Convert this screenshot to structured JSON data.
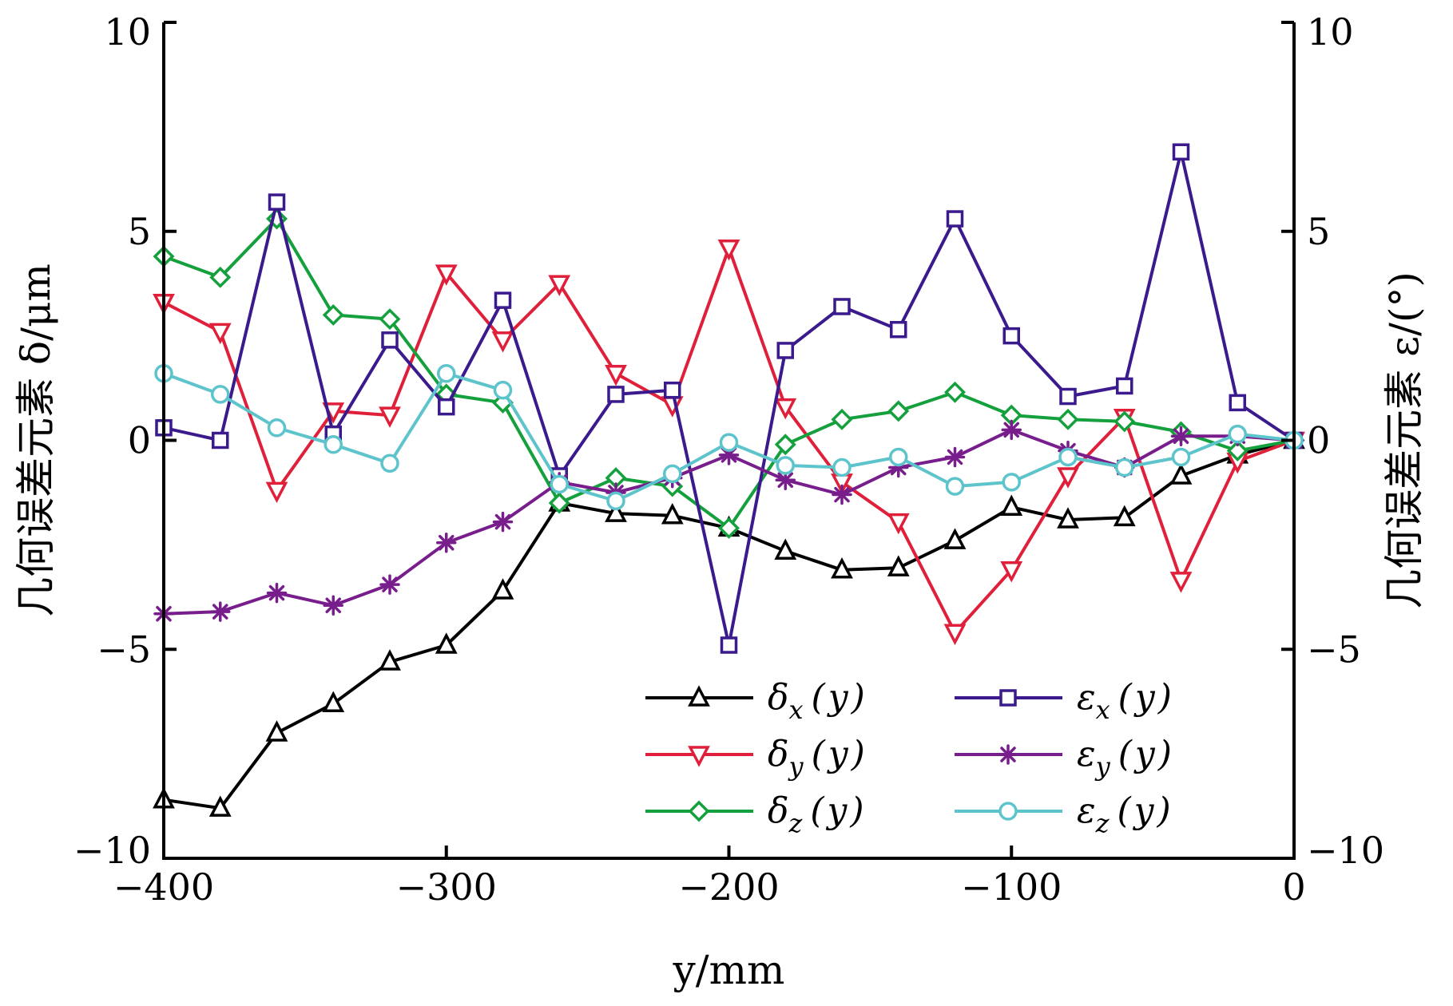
{
  "chart_data": {
    "type": "line",
    "x": [
      -400,
      -380,
      -360,
      -340,
      -320,
      -300,
      -280,
      -260,
      -240,
      -220,
      -200,
      -180,
      -160,
      -140,
      -120,
      -100,
      -80,
      -60,
      -40,
      -20,
      0
    ],
    "xlim": [
      -400,
      0
    ],
    "ylim_left": [
      -10,
      10
    ],
    "ylim_right": [
      -10,
      10
    ],
    "xlabel": "y/mm",
    "ylabel_left": "几何误差元素 δ/μm",
    "ylabel_right": "几何误差元素 ε/(°)",
    "x_ticks": [
      -400,
      -300,
      -200,
      -100,
      0
    ],
    "x_tick_labels": [
      "−400",
      "−300",
      "−200",
      "−100",
      "0"
    ],
    "y_ticks": [
      10,
      5,
      0,
      -5,
      -10
    ],
    "y_tick_labels": [
      "10",
      "5",
      "0",
      "−5",
      "−10"
    ],
    "grid": false,
    "legend_position": "bottom-right",
    "series": [
      {
        "name": "δx(y)",
        "base": "δ",
        "sub": "x",
        "arg": "y",
        "color": "#000000",
        "marker": "triangle-up",
        "values": [
          -8.6,
          -8.8,
          -7.0,
          -6.3,
          -5.3,
          -4.9,
          -3.6,
          -1.5,
          -1.75,
          -1.8,
          -2.1,
          -2.65,
          -3.1,
          -3.05,
          -2.4,
          -1.6,
          -1.9,
          -1.85,
          -0.85,
          -0.35,
          0.0
        ]
      },
      {
        "name": "δy(y)",
        "base": "δ",
        "sub": "y",
        "arg": "y",
        "color": "#e0203a",
        "marker": "triangle-down",
        "values": [
          3.3,
          2.6,
          -1.2,
          0.7,
          0.6,
          4.0,
          2.4,
          3.75,
          1.6,
          0.85,
          4.6,
          0.8,
          -1.0,
          -1.95,
          -4.6,
          -3.1,
          -0.85,
          0.55,
          -3.35,
          -0.5,
          0.0
        ]
      },
      {
        "name": "δz(y)",
        "base": "δ",
        "sub": "z",
        "arg": "y",
        "color": "#14a03c",
        "marker": "diamond",
        "values": [
          4.4,
          3.9,
          5.3,
          3.0,
          2.9,
          1.1,
          0.9,
          -1.5,
          -0.9,
          -1.1,
          -2.1,
          -0.1,
          0.5,
          0.7,
          1.15,
          0.6,
          0.5,
          0.45,
          0.2,
          -0.25,
          0.0
        ]
      },
      {
        "name": "εx(y)",
        "base": "ε",
        "sub": "x",
        "arg": "y",
        "color": "#3a1a8c",
        "marker": "square",
        "values": [
          0.3,
          0.0,
          5.7,
          0.15,
          2.4,
          0.8,
          3.35,
          -0.85,
          1.1,
          1.2,
          -4.9,
          2.15,
          3.2,
          2.65,
          5.3,
          2.5,
          1.05,
          1.3,
          6.9,
          0.9,
          0.0
        ]
      },
      {
        "name": "εy(y)",
        "base": "ε",
        "sub": "y",
        "arg": "y",
        "color": "#781e8c",
        "marker": "asterisk",
        "values": [
          -4.15,
          -4.1,
          -3.65,
          -3.95,
          -3.45,
          -2.45,
          -1.95,
          -1.0,
          -1.25,
          -0.9,
          -0.35,
          -0.95,
          -1.3,
          -0.65,
          -0.4,
          0.25,
          -0.25,
          -0.65,
          0.1,
          0.1,
          0.0
        ]
      },
      {
        "name": "εz(y)",
        "base": "ε",
        "sub": "z",
        "arg": "y",
        "color": "#5ec4cc",
        "marker": "circle",
        "values": [
          1.6,
          1.1,
          0.3,
          -0.1,
          -0.55,
          1.6,
          1.2,
          -1.05,
          -1.45,
          -0.8,
          -0.05,
          -0.6,
          -0.65,
          -0.4,
          -1.1,
          -1.0,
          -0.4,
          -0.65,
          -0.4,
          0.15,
          0.0
        ]
      }
    ]
  }
}
